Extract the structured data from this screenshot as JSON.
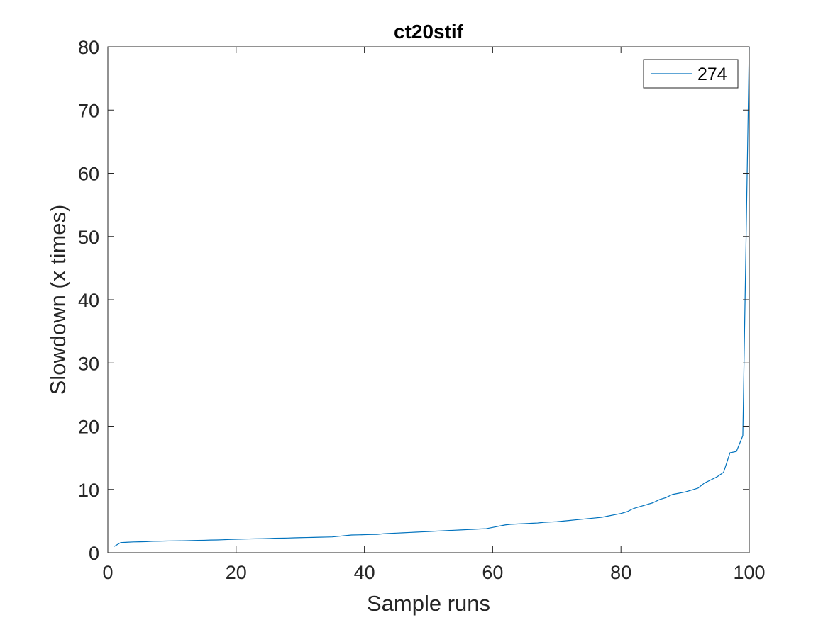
{
  "chart_data": {
    "type": "line",
    "title": "ct20stif",
    "xlabel": "Sample runs",
    "ylabel": "Slowdown (x times)",
    "xlim": [
      0,
      100
    ],
    "ylim": [
      0,
      80
    ],
    "xticks": [
      "0",
      "20",
      "40",
      "60",
      "80",
      "100"
    ],
    "yticks": [
      "0",
      "10",
      "20",
      "30",
      "40",
      "50",
      "60",
      "70",
      "80"
    ],
    "grid": false,
    "legend_position": "top-right",
    "series": [
      {
        "name": "274",
        "color": "#0072BD",
        "x": [
          1,
          2,
          3,
          4,
          5,
          6,
          7,
          8,
          9,
          10,
          11,
          12,
          13,
          14,
          15,
          16,
          17,
          18,
          19,
          20,
          21,
          22,
          23,
          24,
          25,
          26,
          27,
          28,
          29,
          30,
          31,
          32,
          33,
          34,
          35,
          36,
          37,
          38,
          39,
          40,
          41,
          42,
          43,
          44,
          45,
          46,
          47,
          48,
          49,
          50,
          51,
          52,
          53,
          54,
          55,
          56,
          57,
          58,
          59,
          60,
          61,
          62,
          63,
          64,
          65,
          66,
          67,
          68,
          69,
          70,
          71,
          72,
          73,
          74,
          75,
          76,
          77,
          78,
          79,
          80,
          81,
          82,
          83,
          84,
          85,
          86,
          87,
          88,
          89,
          90,
          91,
          92,
          93,
          94,
          95,
          96,
          97,
          98,
          99,
          100
        ],
        "y": [
          1.0,
          1.6,
          1.65,
          1.7,
          1.72,
          1.75,
          1.8,
          1.82,
          1.85,
          1.87,
          1.88,
          1.9,
          1.92,
          1.95,
          1.97,
          2.0,
          2.02,
          2.05,
          2.1,
          2.12,
          2.15,
          2.18,
          2.2,
          2.22,
          2.25,
          2.28,
          2.3,
          2.32,
          2.35,
          2.38,
          2.4,
          2.42,
          2.45,
          2.47,
          2.5,
          2.6,
          2.7,
          2.8,
          2.82,
          2.85,
          2.88,
          2.9,
          3.0,
          3.05,
          3.1,
          3.15,
          3.2,
          3.25,
          3.3,
          3.35,
          3.4,
          3.45,
          3.5,
          3.55,
          3.6,
          3.65,
          3.7,
          3.75,
          3.8,
          4.0,
          4.2,
          4.4,
          4.5,
          4.55,
          4.6,
          4.65,
          4.7,
          4.8,
          4.85,
          4.9,
          5.0,
          5.1,
          5.2,
          5.3,
          5.4,
          5.5,
          5.6,
          5.8,
          6.0,
          6.2,
          6.5,
          7.0,
          7.3,
          7.6,
          7.9,
          8.4,
          8.7,
          9.2,
          9.4,
          9.6,
          9.9,
          10.2,
          11.0,
          11.5,
          12.0,
          12.7,
          15.8,
          16.0,
          18.5,
          80.0
        ]
      }
    ]
  }
}
